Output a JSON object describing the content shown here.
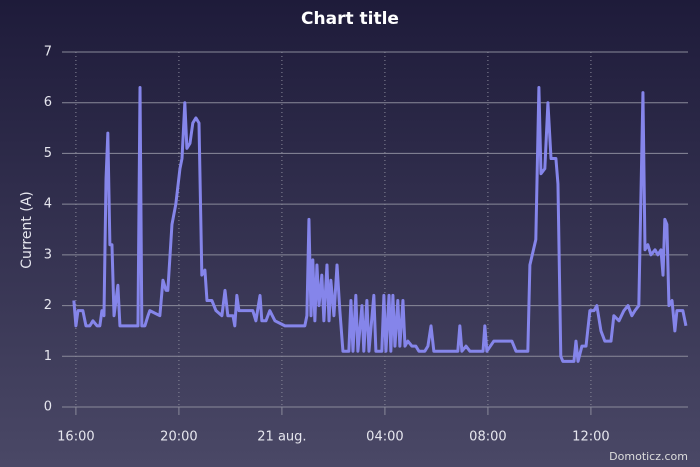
{
  "chart_data": {
    "type": "line",
    "title": "Chart title",
    "y_label": "Current (A)",
    "credit": "Domoticz.com",
    "x": [
      15.92,
      16.0,
      16.08,
      16.27,
      16.39,
      16.54,
      16.66,
      16.82,
      16.93,
      17.01,
      17.09,
      17.17,
      17.24,
      17.32,
      17.4,
      17.48,
      17.63,
      17.71,
      18.41,
      18.49,
      18.56,
      18.68,
      18.8,
      18.87,
      19.26,
      19.38,
      19.5,
      19.57,
      19.73,
      19.88,
      20.04,
      20.12,
      20.23,
      20.31,
      20.43,
      20.54,
      20.66,
      20.78,
      20.89,
      21.01,
      21.09,
      21.28,
      21.44,
      21.67,
      21.79,
      21.9,
      22.1,
      22.17,
      22.25,
      22.33,
      22.87,
      22.99,
      23.15,
      23.22,
      23.38,
      23.53,
      23.73,
      24.12,
      24.89,
      24.97,
      25.05,
      25.13,
      25.2,
      25.28,
      25.36,
      25.44,
      25.55,
      25.63,
      25.75,
      25.83,
      25.9,
      26.02,
      26.14,
      26.25,
      26.37,
      26.6,
      26.68,
      26.76,
      26.87,
      26.95,
      27.11,
      27.18,
      27.3,
      27.38,
      27.57,
      27.65,
      27.88,
      27.96,
      28.04,
      28.16,
      28.23,
      28.31,
      28.39,
      28.5,
      28.58,
      28.7,
      28.78,
      28.89,
      29.05,
      29.2,
      29.32,
      29.55,
      29.67,
      29.79,
      29.9,
      30.06,
      30.83,
      30.91,
      30.99,
      31.15,
      31.3,
      31.81,
      31.88,
      31.96,
      32.23,
      32.93,
      33.09,
      33.55,
      33.63,
      33.86,
      33.98,
      34.06,
      34.21,
      34.33,
      34.45,
      34.64,
      34.72,
      34.83,
      34.91,
      35.34,
      35.42,
      35.5,
      35.65,
      35.81,
      35.96,
      36.12,
      36.23,
      36.39,
      36.54,
      36.78,
      36.89,
      37.09,
      37.28,
      37.44,
      37.59,
      37.71,
      37.86,
      38.02,
      38.1,
      38.21,
      38.33,
      38.49,
      38.6,
      38.72,
      38.8,
      38.87,
      38.95,
      39.03,
      39.15,
      39.26,
      39.34,
      39.46,
      39.57,
      39.69
    ],
    "values": [
      2.1,
      1.6,
      1.9,
      1.9,
      1.6,
      1.6,
      1.7,
      1.6,
      1.6,
      1.9,
      1.8,
      4.5,
      5.4,
      3.2,
      3.2,
      1.8,
      2.4,
      1.6,
      1.6,
      6.3,
      1.6,
      1.6,
      1.8,
      1.9,
      1.8,
      2.5,
      2.3,
      2.3,
      3.6,
      4.0,
      4.7,
      4.9,
      6.0,
      5.1,
      5.2,
      5.6,
      5.7,
      5.6,
      2.6,
      2.7,
      2.1,
      2.1,
      1.9,
      1.8,
      2.3,
      1.8,
      1.8,
      1.6,
      2.2,
      1.9,
      1.9,
      1.7,
      2.2,
      1.7,
      1.7,
      1.9,
      1.7,
      1.6,
      1.6,
      1.8,
      3.7,
      1.8,
      2.9,
      1.7,
      2.8,
      2.0,
      2.6,
      1.7,
      2.8,
      1.7,
      2.5,
      1.8,
      2.8,
      1.9,
      1.1,
      1.1,
      2.1,
      1.1,
      2.2,
      1.1,
      2.0,
      1.1,
      2.1,
      1.1,
      2.2,
      1.1,
      1.1,
      2.2,
      1.1,
      2.2,
      1.1,
      2.2,
      1.2,
      2.1,
      1.2,
      2.1,
      1.2,
      1.3,
      1.2,
      1.2,
      1.1,
      1.1,
      1.2,
      1.6,
      1.1,
      1.1,
      1.1,
      1.6,
      1.1,
      1.2,
      1.1,
      1.1,
      1.6,
      1.1,
      1.3,
      1.3,
      1.1,
      1.1,
      2.8,
      3.3,
      6.3,
      4.6,
      4.7,
      6.0,
      4.9,
      4.9,
      4.4,
      1.0,
      0.9,
      0.9,
      1.3,
      0.9,
      1.2,
      1.2,
      1.9,
      1.9,
      2.0,
      1.5,
      1.3,
      1.3,
      1.8,
      1.7,
      1.9,
      2.0,
      1.8,
      1.9,
      2.0,
      6.2,
      3.1,
      3.2,
      3.0,
      3.1,
      3.0,
      3.1,
      2.6,
      3.7,
      3.6,
      2.0,
      2.1,
      1.5,
      1.9,
      1.9,
      1.9,
      1.6
    ],
    "color": "#8585ea",
    "xlim": [
      15.46,
      39.77
    ],
    "xticks": [
      {
        "value": 16,
        "label": "16:00"
      },
      {
        "value": 20,
        "label": "20:00"
      },
      {
        "value": 24,
        "label": "21 aug."
      },
      {
        "value": 28,
        "label": "04:00"
      },
      {
        "value": 32,
        "label": "08:00"
      },
      {
        "value": 36,
        "label": "12:00"
      }
    ],
    "ylim": [
      0,
      7
    ],
    "yticks": [
      0,
      1,
      2,
      3,
      4,
      5,
      6,
      7
    ],
    "grid": true
  }
}
